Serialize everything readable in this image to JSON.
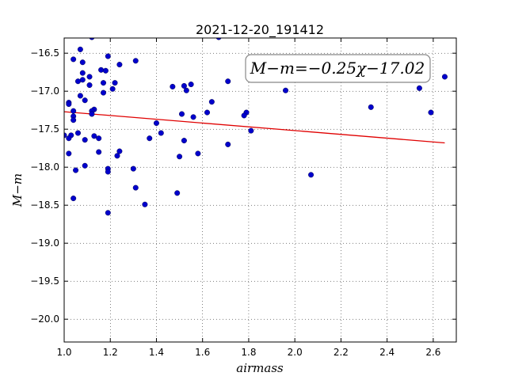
{
  "chart_data": {
    "type": "scatter",
    "title": "2021-12-20_191412",
    "xlabel": "airmass",
    "ylabel": "M−m",
    "xlim": [
      1.0,
      2.7
    ],
    "ylim": [
      -20.3,
      -16.3
    ],
    "x_ticks": [
      1.0,
      1.2,
      1.4,
      1.6,
      1.8,
      2.0,
      2.2,
      2.4,
      2.6
    ],
    "x_tick_labels": [
      "1.0",
      "1.2",
      "1.4",
      "1.6",
      "1.8",
      "2.0",
      "2.2",
      "2.4",
      "2.6"
    ],
    "y_ticks": [
      -16.5,
      -17.0,
      -17.5,
      -18.0,
      -18.5,
      -19.0,
      -19.5,
      -20.0
    ],
    "y_tick_labels": [
      "−16.5",
      "−17.0",
      "−17.5",
      "−18.0",
      "−18.5",
      "−19.0",
      "−19.5",
      "−20.0"
    ],
    "grid": true,
    "annotation": "M−m=−0.25χ−17.02",
    "fit_line": {
      "x": [
        1.0,
        2.65
      ],
      "y": [
        -17.27,
        -17.68
      ],
      "color": "#e00000"
    },
    "point_color": "#0000cc",
    "points": [
      [
        1.12,
        -16.29
      ],
      [
        1.67,
        -16.29
      ],
      [
        1.07,
        -16.45
      ],
      [
        1.04,
        -16.58
      ],
      [
        1.19,
        -16.54
      ],
      [
        1.31,
        -16.6
      ],
      [
        1.08,
        -16.62
      ],
      [
        1.24,
        -16.65
      ],
      [
        1.16,
        -16.72
      ],
      [
        1.18,
        -16.73
      ],
      [
        1.08,
        -16.76
      ],
      [
        1.11,
        -16.81
      ],
      [
        2.65,
        -16.81
      ],
      [
        1.08,
        -16.85
      ],
      [
        1.06,
        -16.87
      ],
      [
        1.22,
        -16.89
      ],
      [
        1.71,
        -16.87
      ],
      [
        1.17,
        -16.89
      ],
      [
        1.55,
        -16.91
      ],
      [
        1.11,
        -16.92
      ],
      [
        1.52,
        -16.93
      ],
      [
        1.47,
        -16.94
      ],
      [
        2.54,
        -16.96
      ],
      [
        1.21,
        -16.97
      ],
      [
        1.53,
        -16.99
      ],
      [
        1.96,
        -16.99
      ],
      [
        1.17,
        -17.02
      ],
      [
        1.07,
        -17.06
      ],
      [
        1.09,
        -17.12
      ],
      [
        1.64,
        -17.14
      ],
      [
        1.02,
        -17.15
      ],
      [
        1.02,
        -17.17
      ],
      [
        2.33,
        -17.21
      ],
      [
        1.13,
        -17.24
      ],
      [
        1.12,
        -17.26
      ],
      [
        1.04,
        -17.26
      ],
      [
        1.62,
        -17.28
      ],
      [
        1.79,
        -17.28
      ],
      [
        2.59,
        -17.28
      ],
      [
        1.51,
        -17.3
      ],
      [
        1.12,
        -17.3
      ],
      [
        1.78,
        -17.32
      ],
      [
        1.56,
        -17.34
      ],
      [
        1.04,
        -17.33
      ],
      [
        1.04,
        -17.38
      ],
      [
        1.4,
        -17.42
      ],
      [
        1.81,
        -17.52
      ],
      [
        1.42,
        -17.55
      ],
      [
        1.06,
        -17.55
      ],
      [
        1.0,
        -17.58
      ],
      [
        1.03,
        -17.58
      ],
      [
        1.13,
        -17.59
      ],
      [
        1.02,
        -17.62
      ],
      [
        1.15,
        -17.62
      ],
      [
        1.37,
        -17.62
      ],
      [
        1.09,
        -17.64
      ],
      [
        1.52,
        -17.65
      ],
      [
        1.71,
        -17.7
      ],
      [
        1.24,
        -17.79
      ],
      [
        1.15,
        -17.8
      ],
      [
        1.02,
        -17.82
      ],
      [
        1.58,
        -17.82
      ],
      [
        1.23,
        -17.85
      ],
      [
        1.5,
        -17.86
      ],
      [
        1.09,
        -17.98
      ],
      [
        1.19,
        -18.02
      ],
      [
        1.3,
        -18.02
      ],
      [
        1.05,
        -18.04
      ],
      [
        1.19,
        -18.06
      ],
      [
        2.07,
        -18.1
      ],
      [
        1.31,
        -18.27
      ],
      [
        1.49,
        -18.34
      ],
      [
        1.04,
        -18.41
      ],
      [
        1.35,
        -18.49
      ],
      [
        1.19,
        -18.6
      ]
    ]
  }
}
